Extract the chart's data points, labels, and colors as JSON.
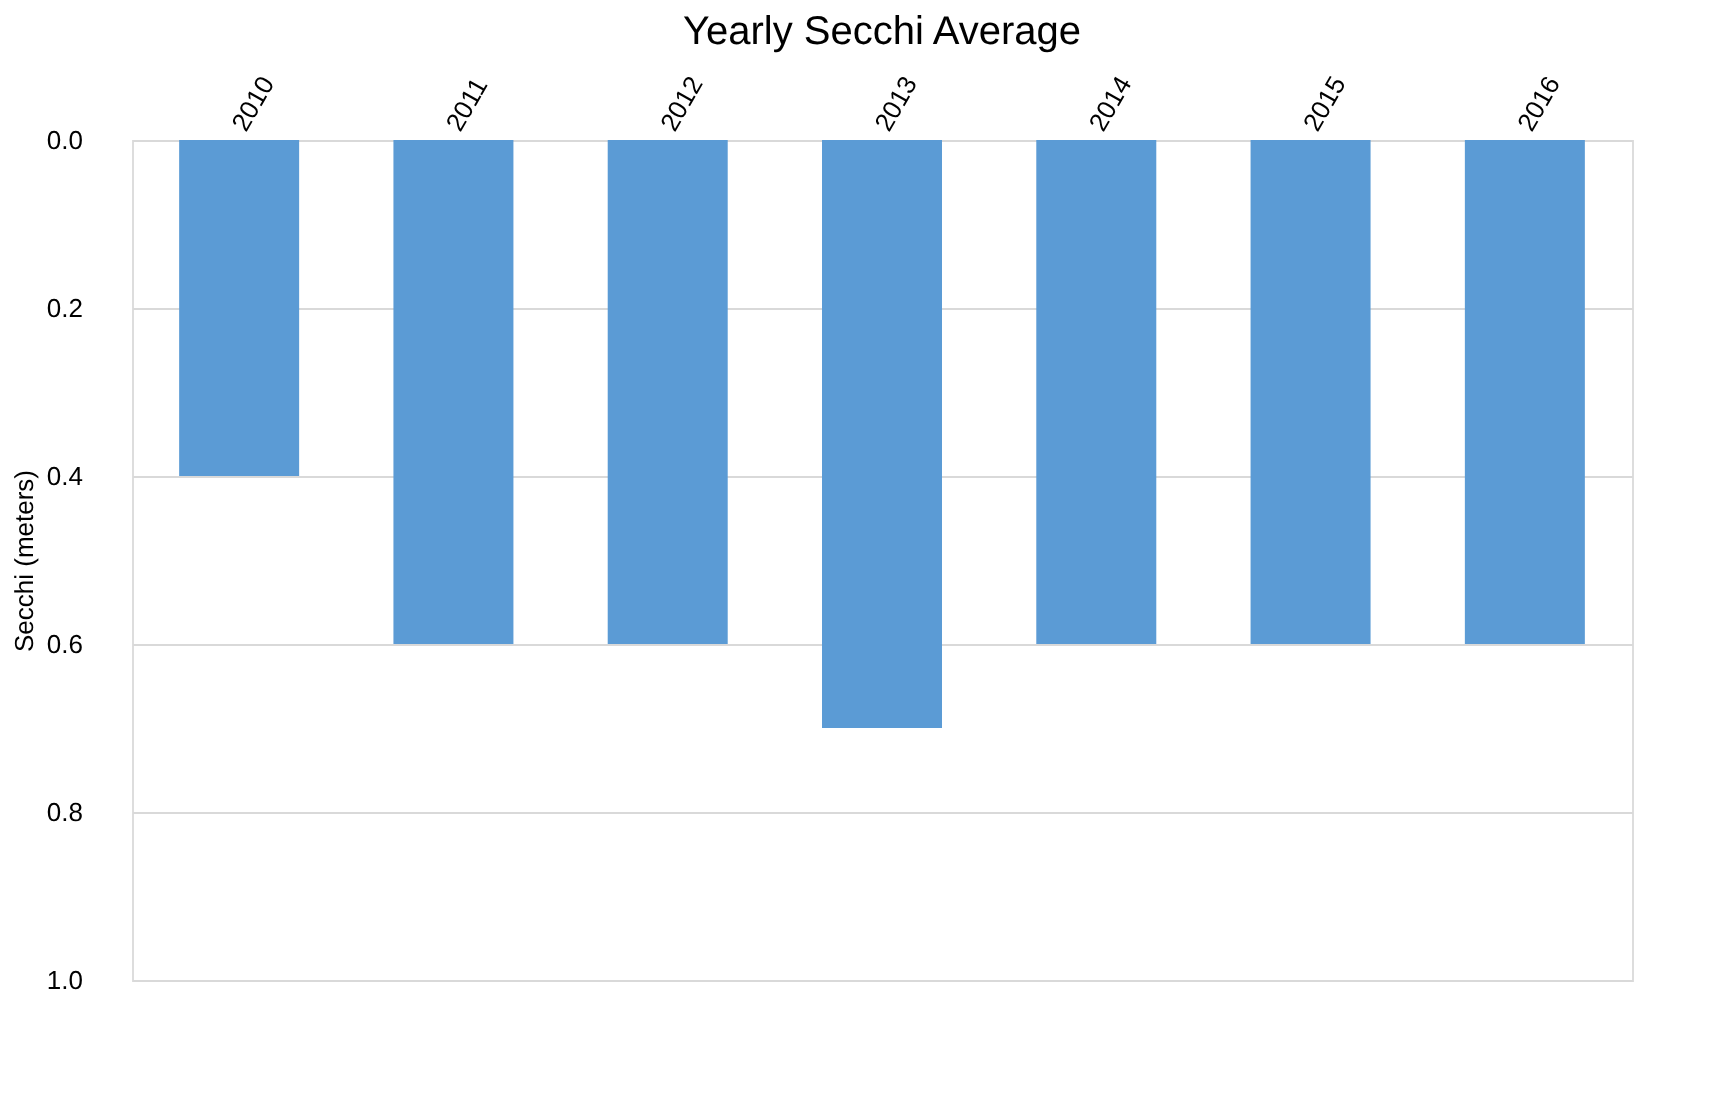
{
  "chart_data": {
    "type": "bar",
    "title": "Yearly Secchi Average",
    "ylabel": "Secchi (meters)",
    "categories": [
      "2010",
      "2011",
      "2012",
      "2013",
      "2014",
      "2015",
      "2016"
    ],
    "values": [
      0.4,
      0.6,
      0.6,
      0.7,
      0.6,
      0.6,
      0.6
    ],
    "color": "#5b9bd5",
    "ylim": [
      1.0,
      0.0
    ],
    "yticks": [
      {
        "value": 0,
        "label": "0.0"
      },
      0.2,
      0.4,
      0.6,
      0.8,
      {
        "value": 1.0,
        "label": "1.0"
      }
    ],
    "grid": "y"
  }
}
